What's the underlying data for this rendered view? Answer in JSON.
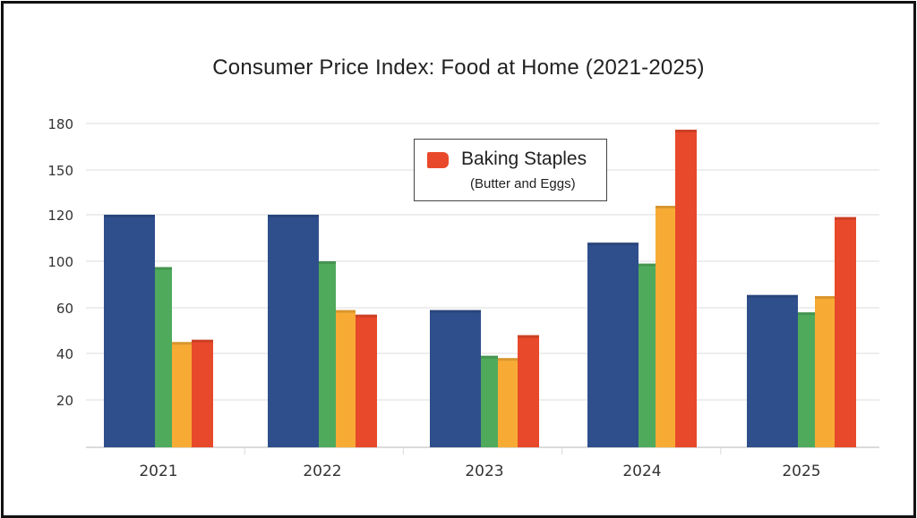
{
  "chart_data": {
    "type": "bar",
    "title": "Consumer Price Index: Food at Home (2021-2025)",
    "categories": [
      "2021",
      "2022",
      "2023",
      "2024",
      "2025"
    ],
    "y_tick_labels": [
      "20",
      "40",
      "60",
      "100",
      "120",
      "150",
      "180"
    ],
    "grid": true,
    "legend": {
      "position": "top-center",
      "label": "Baking Staples",
      "sublabel": "(Butter and Eggs)",
      "color": "#e8492a"
    },
    "series": [
      {
        "color": "#2f4f8c",
        "values": [
          120,
          120,
          59,
          108,
          71
        ]
      },
      {
        "color": "#4faa5c",
        "values": [
          95,
          100,
          39,
          98,
          58
        ]
      },
      {
        "color": "#f7ab35",
        "values": [
          45,
          59,
          38,
          126,
          70
        ]
      },
      {
        "name": "Baking Staples",
        "color": "#e8492a",
        "values": [
          46,
          57,
          48,
          176,
          119
        ]
      }
    ]
  }
}
